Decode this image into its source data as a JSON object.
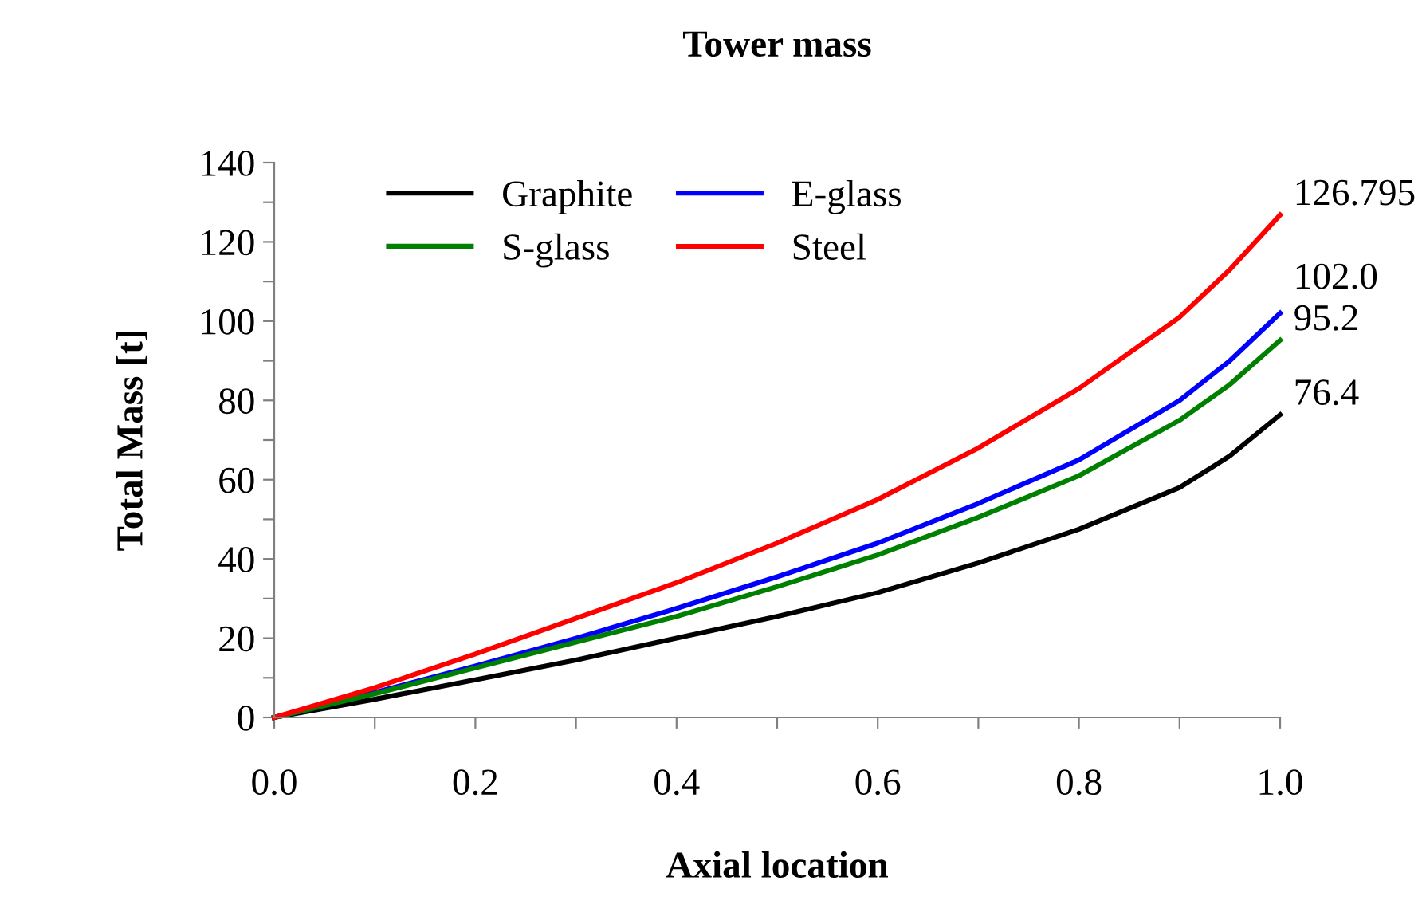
{
  "chart_data": {
    "type": "line",
    "title": "Tower mass",
    "xlabel": "Axial location",
    "ylabel": "Total Mass [t]",
    "x": [
      0,
      0.1,
      0.2,
      0.3,
      0.4,
      0.5,
      0.6,
      0.7,
      0.8,
      0.9,
      0.95,
      1.0
    ],
    "series": [
      {
        "name": "Graphite",
        "color": "#000000",
        "values": [
          0,
          4.6,
          9.5,
          14.5,
          20,
          25.5,
          31.5,
          39,
          47.5,
          58,
          66,
          76.4
        ],
        "value_labels": [
          null,
          null,
          null,
          null,
          null,
          null,
          null,
          null,
          null,
          null,
          null,
          "76.4"
        ]
      },
      {
        "name": "E-glass",
        "color": "#0000ff",
        "values": [
          0,
          6.3,
          13,
          20,
          27.5,
          35.5,
          44,
          54,
          65,
          80,
          90,
          102.0
        ],
        "value_labels": [
          null,
          null,
          null,
          null,
          null,
          null,
          null,
          null,
          null,
          null,
          null,
          "102.0"
        ]
      },
      {
        "name": "S-glass",
        "color": "#008000",
        "values": [
          0,
          6,
          12.5,
          19,
          25.5,
          33,
          41,
          50.5,
          61,
          75,
          84,
          95.2
        ],
        "value_labels": [
          null,
          null,
          null,
          null,
          null,
          null,
          null,
          null,
          null,
          null,
          null,
          "95.2"
        ]
      },
      {
        "name": "Steel",
        "color": "#ff0000",
        "values": [
          0,
          7.5,
          16,
          25,
          34,
          44,
          55,
          68,
          83,
          101,
          113,
          126.795
        ],
        "value_labels": [
          null,
          null,
          null,
          null,
          null,
          null,
          null,
          null,
          null,
          null,
          null,
          "126.795"
        ]
      }
    ],
    "xlim": [
      0,
      1.0
    ],
    "ylim": [
      0,
      140
    ],
    "xticks": [
      {
        "value": 0,
        "label": "0.0"
      },
      {
        "value": 0.1,
        "label": null
      },
      {
        "value": 0.2,
        "label": "0.2"
      },
      {
        "value": 0.3,
        "label": null
      },
      {
        "value": 0.4,
        "label": "0.4"
      },
      {
        "value": 0.5,
        "label": null
      },
      {
        "value": 0.6,
        "label": "0.6"
      },
      {
        "value": 0.7,
        "label": null
      },
      {
        "value": 0.8,
        "label": "0.8"
      },
      {
        "value": 0.9,
        "label": null
      },
      {
        "value": 1.0,
        "label": "1.0"
      }
    ],
    "yticks": [
      0,
      {
        "value": 10,
        "label": null
      },
      20,
      {
        "value": 30,
        "label": null
      },
      40,
      {
        "value": 50,
        "label": null
      },
      60,
      {
        "value": 70,
        "label": null
      },
      80,
      {
        "value": 90,
        "label": null
      },
      100,
      {
        "value": 110,
        "label": null
      },
      120,
      {
        "value": 130,
        "label": null
      },
      140
    ],
    "legend": "top left",
    "grid": false,
    "marker": "none",
    "line_style": "solid"
  }
}
